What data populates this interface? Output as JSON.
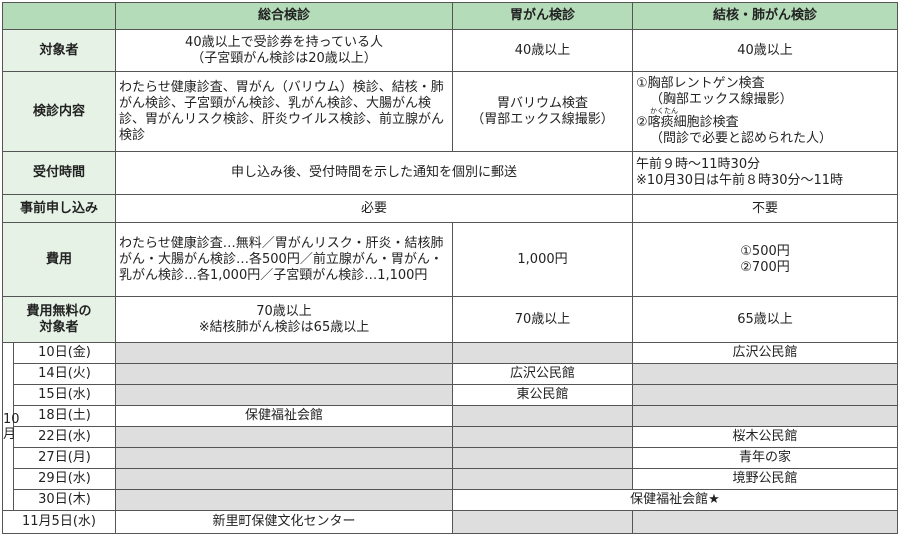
{
  "header": {
    "blank": "",
    "col1": "総合検診",
    "col2": "胃がん検診",
    "col3": "結核・肺がん検診"
  },
  "rows": {
    "target": {
      "label": "対象者",
      "c1": [
        "40歳以上で受診券を持っている人",
        "（子宮頸がん検診は20歳以上）"
      ],
      "c2": "40歳以上",
      "c3": "40歳以上"
    },
    "content": {
      "label": "検診内容",
      "c1": "わたらせ健康診査、胃がん（バリウム）検診、結核・肺がん検診、子宮頸がん検診、乳がん検診、大腸がん検診、胃がんリスク検診、肝炎ウイルス検診、前立腺がん検診",
      "c2": [
        "胃バリウム検査",
        "（胃部エックス線撮影）"
      ],
      "c3": [
        "①胸部レントゲン検査",
        "（胸部エックス線撮影）",
        "かくたん",
        "②喀痰細胞診検査",
        "（問診で必要と認められた人）"
      ]
    },
    "reception": {
      "label": "受付時間",
      "c12": "申し込み後、受付時間を示した通知を個別に郵送",
      "c3": [
        "午前９時～11時30分",
        "※10月30日は午前８時30分～11時"
      ]
    },
    "preapply": {
      "label": "事前申し込み",
      "c12": "必要",
      "c3": "不要"
    },
    "cost": {
      "label": "費用",
      "c1": "わたらせ健康診査…無料／胃がんリスク・肝炎・結核肺がん・大腸がん検診…各500円／前立腺がん・胃がん・乳がん検診…各1,000円／子宮頸がん検診…1,100円",
      "c2": "1,000円",
      "c3": [
        "①500円",
        "②700円"
      ]
    },
    "free": {
      "label": [
        "費用無料の",
        "対象者"
      ],
      "c1": [
        "70歳以上",
        "※結核肺がん検診は65歳以上"
      ],
      "c2": "70歳以上",
      "c3": "65歳以上"
    }
  },
  "schedule": {
    "month": "10月",
    "days": [
      {
        "date": "10日(金)",
        "c1": "",
        "c2": "",
        "c3": "広沢公民館"
      },
      {
        "date": "14日(火)",
        "c1": "",
        "c2": "広沢公民館",
        "c3": ""
      },
      {
        "date": "15日(水)",
        "c1": "",
        "c2": "東公民館",
        "c3": ""
      },
      {
        "date": "18日(土)",
        "c1": "保健福祉会館",
        "c2": "",
        "c3": ""
      },
      {
        "date": "22日(水)",
        "c1": "",
        "c2": "",
        "c3": "桜木公民館"
      },
      {
        "date": "27日(月)",
        "c1": "",
        "c2": "",
        "c3": "青年の家"
      },
      {
        "date": "29日(水)",
        "c1": "",
        "c2": "",
        "c3": "境野公民館"
      },
      {
        "date": "30日(木)",
        "c1": "",
        "c23": "保健福祉会館★"
      }
    ],
    "nov": {
      "date": "11月5日(水)",
      "c1": "新里町保健文化センター",
      "c2": "",
      "c3": ""
    }
  },
  "colors": {
    "header": "#b5dcb9",
    "label": "#e6f2e6",
    "unavailable": "#dedede"
  }
}
